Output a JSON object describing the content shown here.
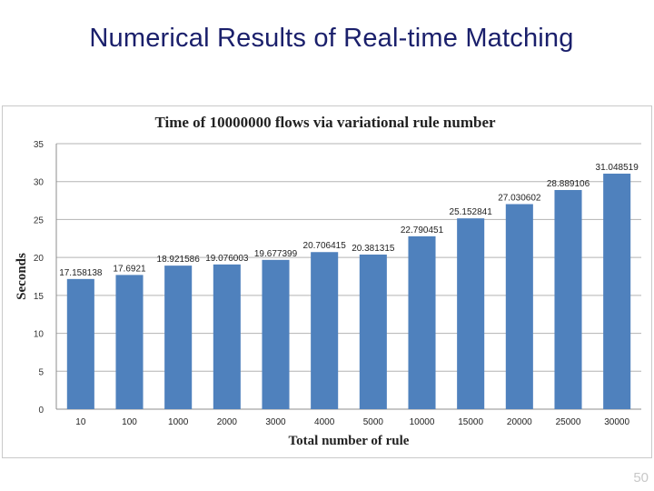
{
  "slide": {
    "title": "Numerical Results of Real-time Matching",
    "page_number": "50"
  },
  "chart_data": {
    "type": "bar",
    "title": "Time of 10000000 flows via variational  rule number",
    "xlabel": "Total number of rule",
    "ylabel": "Seconds",
    "ylim": [
      0,
      35
    ],
    "yticks": [
      0,
      5,
      10,
      15,
      20,
      25,
      30,
      35
    ],
    "grid": true,
    "legend": "none",
    "bar_color": "#4f81bd",
    "categories": [
      "10",
      "100",
      "1000",
      "2000",
      "3000",
      "4000",
      "5000",
      "10000",
      "15000",
      "20000",
      "25000",
      "30000"
    ],
    "values": [
      17.158138,
      17.6921,
      18.921586,
      19.076003,
      19.677399,
      20.706415,
      20.381315,
      22.790451,
      25.152841,
      27.030602,
      28.889106,
      31.048519
    ],
    "data_labels": [
      "17.158138",
      "17.6921",
      "18.921586",
      "19.076003",
      "19.677399",
      "20.706415",
      "20.381315",
      "22.790451",
      "25.152841",
      "27.030602",
      "28.889106",
      "31.048519"
    ]
  }
}
